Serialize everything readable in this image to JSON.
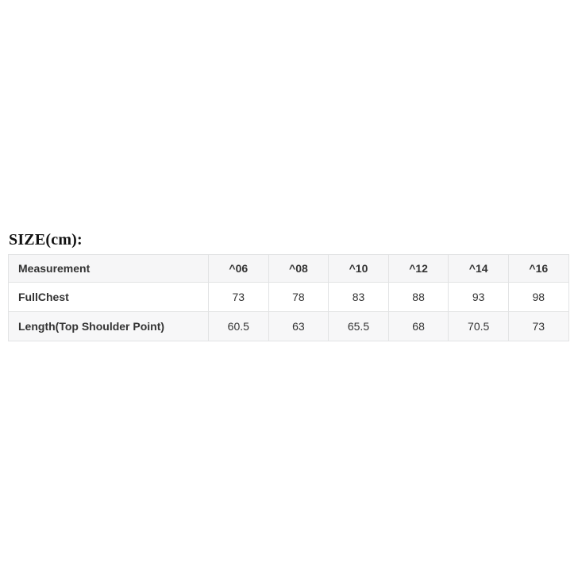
{
  "heading": {
    "text": "SIZE(cm):"
  },
  "size_table": {
    "header": [
      "Measurement",
      "^06",
      "^08",
      "^10",
      "^12",
      "^14",
      "^16"
    ],
    "rows": [
      {
        "label": "FullChest",
        "values": [
          "73",
          "78",
          "83",
          "88",
          "93",
          "98"
        ]
      },
      {
        "label": "Length(Top Shoulder Point)",
        "values": [
          "60.5",
          "63",
          "65.5",
          "68",
          "70.5",
          "73"
        ]
      }
    ],
    "colors": {
      "border": "#e2e3e4",
      "header_bg": "#f6f6f7",
      "stripe_bg": "#f7f7f8",
      "cell_bg": "#ffffff",
      "text": "#333333",
      "heading_text": "#111111",
      "page_bg": "#ffffff"
    }
  }
}
